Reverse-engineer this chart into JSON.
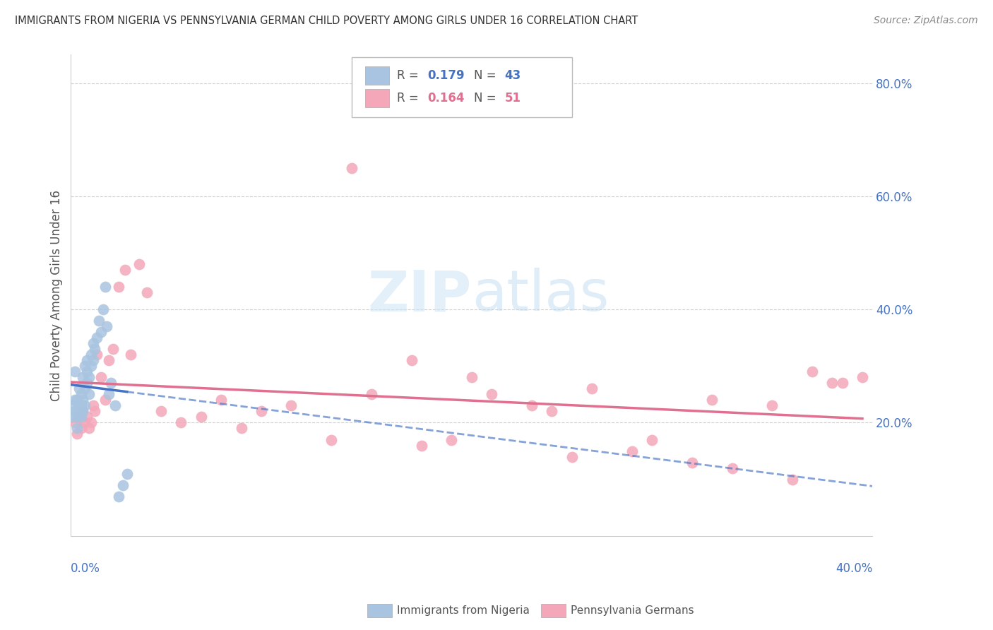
{
  "title": "IMMIGRANTS FROM NIGERIA VS PENNSYLVANIA GERMAN CHILD POVERTY AMONG GIRLS UNDER 16 CORRELATION CHART",
  "source": "Source: ZipAtlas.com",
  "ylabel": "Child Poverty Among Girls Under 16",
  "xlim": [
    0.0,
    0.4
  ],
  "ylim": [
    0.0,
    0.85
  ],
  "yticks": [
    0.2,
    0.4,
    0.6,
    0.8
  ],
  "ytick_labels": [
    "20.0%",
    "40.0%",
    "60.0%",
    "80.0%"
  ],
  "color_blue": "#a8c4e0",
  "color_pink": "#f4a7b9",
  "trendline_blue": "#4472c4",
  "trendline_pink": "#e07090",
  "nigeria_x": [
    0.001,
    0.001,
    0.002,
    0.002,
    0.002,
    0.003,
    0.003,
    0.003,
    0.004,
    0.004,
    0.004,
    0.005,
    0.005,
    0.005,
    0.005,
    0.006,
    0.006,
    0.006,
    0.007,
    0.007,
    0.007,
    0.008,
    0.008,
    0.008,
    0.009,
    0.009,
    0.01,
    0.01,
    0.011,
    0.011,
    0.012,
    0.013,
    0.014,
    0.015,
    0.016,
    0.017,
    0.018,
    0.019,
    0.02,
    0.022,
    0.024,
    0.026,
    0.028
  ],
  "nigeria_y": [
    0.21,
    0.23,
    0.29,
    0.22,
    0.24,
    0.21,
    0.19,
    0.24,
    0.22,
    0.23,
    0.26,
    0.25,
    0.22,
    0.21,
    0.23,
    0.24,
    0.22,
    0.28,
    0.26,
    0.3,
    0.23,
    0.27,
    0.29,
    0.31,
    0.25,
    0.28,
    0.3,
    0.32,
    0.34,
    0.31,
    0.33,
    0.35,
    0.38,
    0.36,
    0.4,
    0.44,
    0.37,
    0.25,
    0.27,
    0.23,
    0.07,
    0.09,
    0.11
  ],
  "pagerman_x": [
    0.002,
    0.003,
    0.004,
    0.005,
    0.006,
    0.007,
    0.008,
    0.009,
    0.01,
    0.011,
    0.012,
    0.013,
    0.015,
    0.017,
    0.019,
    0.021,
    0.024,
    0.027,
    0.03,
    0.034,
    0.038,
    0.045,
    0.055,
    0.065,
    0.075,
    0.085,
    0.095,
    0.11,
    0.13,
    0.15,
    0.175,
    0.2,
    0.23,
    0.26,
    0.29,
    0.32,
    0.35,
    0.37,
    0.385,
    0.395,
    0.17,
    0.21,
    0.24,
    0.28,
    0.33,
    0.36,
    0.38,
    0.25,
    0.19,
    0.31,
    0.14
  ],
  "pagerman_y": [
    0.2,
    0.18,
    0.21,
    0.19,
    0.22,
    0.2,
    0.21,
    0.19,
    0.2,
    0.23,
    0.22,
    0.32,
    0.28,
    0.24,
    0.31,
    0.33,
    0.44,
    0.47,
    0.32,
    0.48,
    0.43,
    0.22,
    0.2,
    0.21,
    0.24,
    0.19,
    0.22,
    0.23,
    0.17,
    0.25,
    0.16,
    0.28,
    0.23,
    0.26,
    0.17,
    0.24,
    0.23,
    0.29,
    0.27,
    0.28,
    0.31,
    0.25,
    0.22,
    0.15,
    0.12,
    0.1,
    0.27,
    0.14,
    0.17,
    0.13,
    0.65
  ]
}
